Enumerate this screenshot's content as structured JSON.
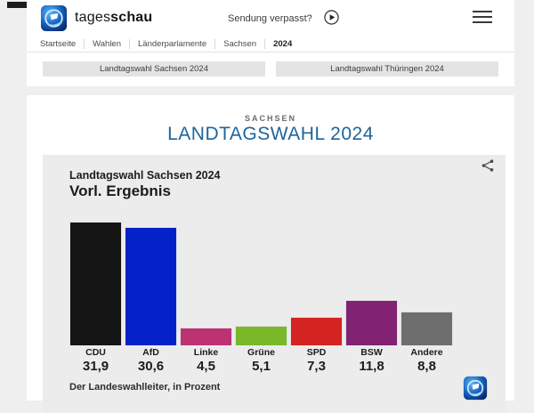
{
  "colors": {
    "page_bg": "#efefef",
    "card_bg": "#ececec",
    "title_blue": "#20649a",
    "brand_blue": "#0b50a0"
  },
  "header": {
    "brand_prefix": "tages",
    "brand_suffix": "schau",
    "sendung_verpasst": "Sendung verpasst?",
    "breadcrumb": [
      "Startseite",
      "Wahlen",
      "Länderparlamente",
      "Sachsen",
      "2024"
    ],
    "tabs": [
      "Landtagswahl Sachsen 2024",
      "Landtagswahl Thüringen 2024"
    ]
  },
  "main": {
    "kicker": "SACHSEN",
    "title": "LANDTAGSWAHL 2024"
  },
  "chart_card": {
    "title": "Landtagswahl Sachsen 2024",
    "subtitle": "Vorl. Ergebnis",
    "source": "Der Landeswahlleiter, in Prozent"
  },
  "chart_data": {
    "type": "bar",
    "title": "Landtagswahl Sachsen 2024 – Vorl. Ergebnis",
    "categories": [
      "CDU",
      "AfD",
      "Linke",
      "Grüne",
      "SPD",
      "BSW",
      "Andere"
    ],
    "values": [
      31.9,
      30.6,
      4.5,
      5.1,
      7.3,
      11.8,
      8.8
    ],
    "value_labels": [
      "31,9",
      "30,6",
      "4,5",
      "5,1",
      "7,3",
      "11,8",
      "8,8"
    ],
    "bar_colors": [
      "#141414",
      "#0522c8",
      "#bd3273",
      "#79b829",
      "#d42421",
      "#812272",
      "#6e6e6e"
    ],
    "unit": "Prozent",
    "source": "Der Landeswahlleiter",
    "ylabel": "",
    "xlabel": "",
    "ylim": [
      0,
      32
    ],
    "grid": false,
    "legend": false
  }
}
